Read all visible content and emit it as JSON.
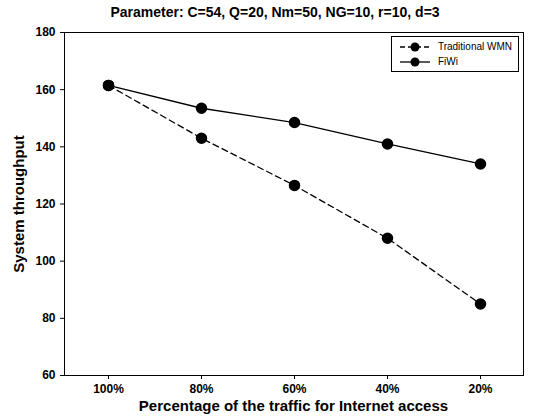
{
  "chart_data": {
    "type": "line",
    "title": "Parameter: C=54, Q=20, Nm=50, NG=10, r=10, d=3",
    "x_label": "Percentage of the traffic for Internet access",
    "y_label": "System throughput",
    "categories": [
      "100%",
      "80%",
      "60%",
      "40%",
      "20%"
    ],
    "series": [
      {
        "name": "Traditional WMN",
        "color": "#000000",
        "line_style": "dashed",
        "marker": "circle",
        "values": [
          161.5,
          143,
          126.5,
          108,
          85
        ]
      },
      {
        "name": "FiWi",
        "color": "#000000",
        "line_style": "solid",
        "marker": "circle",
        "values": [
          161.5,
          153.5,
          148.5,
          141,
          134
        ]
      }
    ],
    "ylim": [
      60,
      180
    ],
    "yticks": [
      60,
      80,
      100,
      120,
      140,
      160,
      180
    ],
    "legend": "upper right",
    "grid": false
  }
}
